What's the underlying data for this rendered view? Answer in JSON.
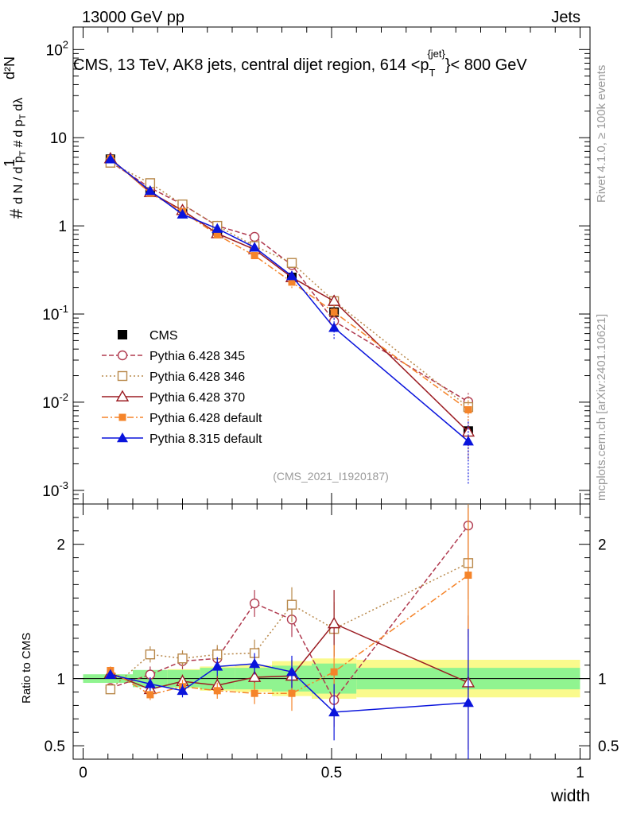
{
  "header": {
    "left": "13000 GeV pp",
    "right": "Jets",
    "title": "CMS, 13 TeV, AK8 jets, central dijet region, 614 <p",
    "title_sup": "{jet}",
    "title_sub": "T",
    "title_end": "}< 800 GeV"
  },
  "side": {
    "rivet": "Rivet 4.1.0, ≥ 100k events",
    "mcplots": "mcplots.cern.ch [arXiv:2401.10621]"
  },
  "watermark": "(CMS_2021_I1920187)",
  "colors": {
    "cms": "#000000",
    "p345": "#b03a4f",
    "p346": "#b8884a",
    "p370": "#9b1c22",
    "p6def": "#f5842a",
    "p8def": "#0a14dc",
    "band_green": "#90f490",
    "band_yellow": "#fafa8c"
  },
  "chart_data": {
    "type": "line",
    "title": "CMS, 13 TeV, AK8 jets, central dijet region, 614 < p_T^{jet} < 800 GeV",
    "xlabel": "width",
    "ylabel": "# 1/(dN/dp_T) # d²N/(dp_T dλ)",
    "xlim": [
      -0.02,
      1.02
    ],
    "ylim": [
      0.0007,
      180
    ],
    "yscale": "log",
    "x_ticks": [
      "0",
      "0.5",
      "1"
    ],
    "y_ticks": [
      "10^-3",
      "10^-2",
      "10^-1",
      "1",
      "10",
      "10^2"
    ],
    "x": [
      0.055,
      0.135,
      0.2,
      0.27,
      0.345,
      0.42,
      0.505,
      0.775
    ],
    "cms": {
      "name": "CMS",
      "values": [
        5.7,
        2.6,
        1.55,
        0.86,
        0.55,
        0.26,
        0.105,
        0.0047
      ],
      "bin_edges": [
        0.0,
        0.1,
        0.17,
        0.235,
        0.305,
        0.38,
        0.46,
        0.55,
        1.0
      ],
      "stat_rel": [
        0.02,
        0.04,
        0.04,
        0.05,
        0.05,
        0.06,
        0.07,
        0.05
      ],
      "syst_rel": [
        0.03,
        0.06,
        0.07,
        0.09,
        0.1,
        0.13,
        0.15,
        0.14
      ]
    },
    "series": [
      {
        "name": "Pythia 6.428 345",
        "key": "p345",
        "marker": "circle-open",
        "dash": "6,3",
        "values": [
          5.3,
          2.7,
          1.75,
          1.0,
          0.75,
          0.36,
          0.083,
          0.0101
        ],
        "ratio": [
          0.93,
          1.03,
          1.13,
          1.15,
          1.56,
          1.44,
          0.84,
          2.14
        ],
        "ratio_err": [
          0.03,
          0.06,
          0.06,
          0.08,
          0.1,
          0.13,
          0.2,
          0.55
        ]
      },
      {
        "name": "Pythia 6.428 346",
        "key": "p346",
        "marker": "square-open",
        "dash": "2,3",
        "values": [
          5.2,
          3.05,
          1.75,
          1.0,
          0.59,
          0.38,
          0.14,
          0.0088
        ],
        "ratio": [
          0.92,
          1.18,
          1.15,
          1.18,
          1.19,
          1.55,
          1.37,
          1.86
        ],
        "ratio_err": [
          0.03,
          0.06,
          0.06,
          0.07,
          0.1,
          0.13,
          0.2,
          0.55
        ]
      },
      {
        "name": "Pythia 6.428 370",
        "key": "p370",
        "marker": "triangle-open",
        "dash": "",
        "values": [
          5.8,
          2.4,
          1.5,
          0.82,
          0.54,
          0.26,
          0.14,
          0.0046
        ],
        "ratio": [
          1.04,
          0.92,
          0.98,
          0.95,
          1.01,
          1.02,
          1.41,
          0.97
        ],
        "ratio_err": [
          0.03,
          0.05,
          0.05,
          0.07,
          0.09,
          0.12,
          0.25,
          0.5
        ]
      },
      {
        "name": "Pythia 6.428 default",
        "key": "p6def",
        "marker": "square-filled",
        "dash": "8,3,2,3",
        "values": [
          5.8,
          2.35,
          1.45,
          0.79,
          0.46,
          0.23,
          0.105,
          0.0082
        ],
        "ratio": [
          1.06,
          0.88,
          0.94,
          0.91,
          0.89,
          0.89,
          1.05,
          1.77
        ],
        "ratio_err": [
          0.03,
          0.04,
          0.05,
          0.06,
          0.08,
          0.13,
          0.2,
          0.5
        ]
      },
      {
        "name": "Pythia 8.315 default",
        "key": "p8def",
        "marker": "triangle-filled",
        "dash": "",
        "values": [
          5.7,
          2.5,
          1.35,
          0.93,
          0.57,
          0.27,
          0.07,
          0.0036
        ],
        "ratio": [
          1.03,
          0.96,
          0.91,
          1.09,
          1.11,
          1.05,
          0.75,
          0.82
        ],
        "ratio_err": [
          0.03,
          0.05,
          0.05,
          0.07,
          0.08,
          0.12,
          0.21,
          0.55
        ]
      }
    ],
    "ratio_panel": {
      "ylabel": "Ratio to CMS",
      "ylim": [
        0.4,
        2.3
      ],
      "y_ticks": [
        "0.5",
        "1",
        "2"
      ],
      "legend_position": "middle-left of main panel"
    }
  }
}
